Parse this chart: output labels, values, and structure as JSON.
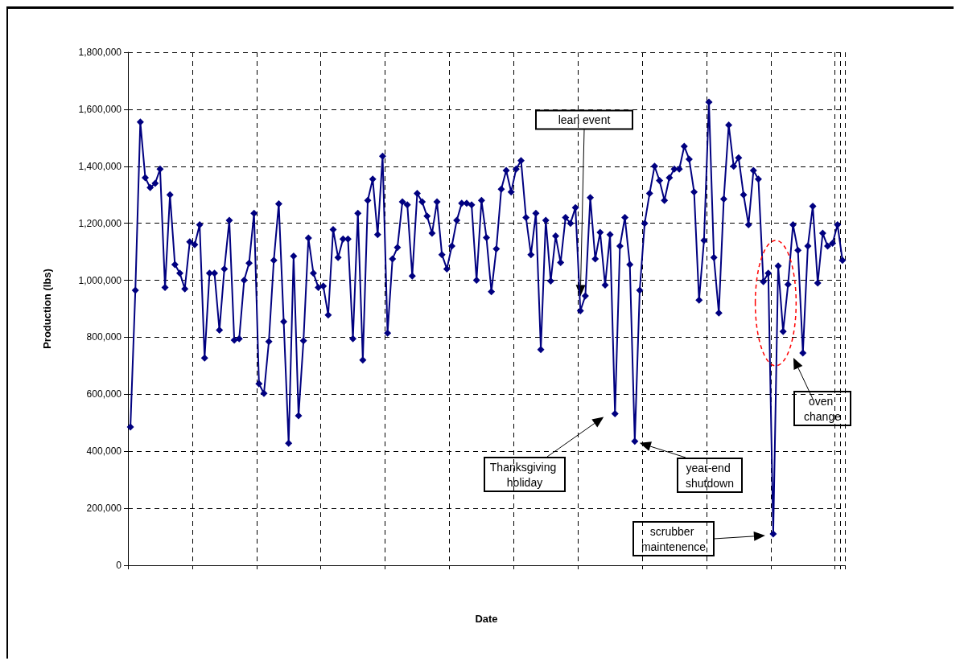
{
  "chart_data": {
    "type": "line",
    "xlabel": "Date",
    "ylabel": "Production (lbs)",
    "categories": [
      null,
      null,
      null,
      null,
      null,
      null,
      null,
      null,
      null,
      null,
      null,
      null,
      null,
      null,
      null,
      null,
      null,
      null,
      null,
      null,
      null,
      null,
      null,
      null,
      null,
      null,
      null,
      null,
      null,
      null,
      null,
      null,
      null,
      null,
      null,
      null,
      null,
      null,
      null,
      null,
      null,
      null,
      null,
      null,
      null,
      null,
      null,
      null,
      null,
      null,
      null,
      null,
      null,
      null,
      null,
      null,
      null,
      null,
      null,
      null,
      null,
      null,
      null,
      null,
      null,
      null,
      null,
      null,
      null,
      null,
      null,
      null,
      null,
      null,
      null,
      null,
      null,
      null,
      null,
      null,
      null,
      null,
      null,
      null,
      null,
      null,
      null,
      null,
      null,
      null,
      null,
      null,
      null,
      null,
      null,
      null,
      null,
      null,
      null,
      null,
      null,
      null,
      null,
      null,
      null,
      null,
      null,
      null,
      null,
      null,
      null,
      null,
      null,
      null,
      null,
      null,
      null,
      null,
      null,
      null,
      null,
      null,
      null,
      null,
      null,
      null,
      null,
      null,
      null,
      null,
      null,
      null,
      null,
      null,
      null,
      null,
      null,
      null,
      null,
      null,
      null,
      null,
      null,
      null,
      null
    ],
    "series": [
      {
        "color": "#000080",
        "values": [
          485000,
          965000,
          1555000,
          1360000,
          1325000,
          1340000,
          1390000,
          975000,
          1300000,
          1055000,
          1025000,
          970000,
          1135000,
          1125000,
          1195000,
          727000,
          1025000,
          1025000,
          825000,
          1040000,
          1210000,
          790000,
          795000,
          1000000,
          1060000,
          1235000,
          637000,
          603000,
          785000,
          1070000,
          1268000,
          855000,
          428000,
          1085000,
          525000,
          788000,
          1148000,
          1025000,
          975000,
          980000,
          878000,
          1178000,
          1080000,
          1145000,
          1145000,
          795000,
          1235000,
          720000,
          1280000,
          1355000,
          1160000,
          1435000,
          815000,
          1075000,
          1115000,
          1275000,
          1265000,
          1015000,
          1305000,
          1275000,
          1225000,
          1165000,
          1275000,
          1090000,
          1040000,
          1120000,
          1210000,
          1270000,
          1270000,
          1265000,
          1000000,
          1280000,
          1150000,
          960000,
          1110000,
          1320000,
          1385000,
          1310000,
          1390000,
          1420000,
          1220000,
          1090000,
          1235000,
          757000,
          1210000,
          997000,
          1155000,
          1062000,
          1220000,
          1200000,
          1255000,
          893000,
          945000,
          1290000,
          1075000,
          1168000,
          983000,
          1160000,
          532000,
          1120000,
          1220000,
          1055000,
          435000,
          965000,
          1200000,
          1305000,
          1400000,
          1350000,
          1280000,
          1360000,
          1390000,
          1390000,
          1470000,
          1425000,
          1310000,
          930000,
          1140000,
          1625000,
          1080000,
          885000,
          1285000,
          1545000,
          1400000,
          1430000,
          1300000,
          1195000,
          1385000,
          1355000,
          995000,
          1025000,
          110000,
          1050000,
          820000,
          985000,
          1195000,
          1105000,
          745000,
          1120000,
          1260000,
          990000,
          1165000,
          1120000,
          1130000,
          1195000,
          1070000
        ]
      }
    ],
    "ylim": [
      0,
      1800000
    ],
    "yticks": [
      0,
      {
        "value": 200000,
        "label": "200,000"
      },
      {
        "value": 400000,
        "label": "400,000"
      },
      {
        "value": 600000,
        "label": "600,000"
      },
      {
        "value": 800000,
        "label": "800,000"
      },
      {
        "value": 1000000,
        "label": "1,000,000"
      },
      {
        "value": 1200000,
        "label": "1,200,000"
      },
      {
        "value": 1400000,
        "label": "1,400,000"
      },
      {
        "value": 1600000,
        "label": "1,600,000"
      },
      {
        "value": 1800000,
        "label": "1,800,000"
      }
    ],
    "grid": true,
    "marker": "diamond",
    "line_style": "solid",
    "annotations": [
      "lean event",
      "Thanksgiving holiday",
      "year-end shutdown",
      "scrubber maintenence",
      "oven change"
    ]
  }
}
